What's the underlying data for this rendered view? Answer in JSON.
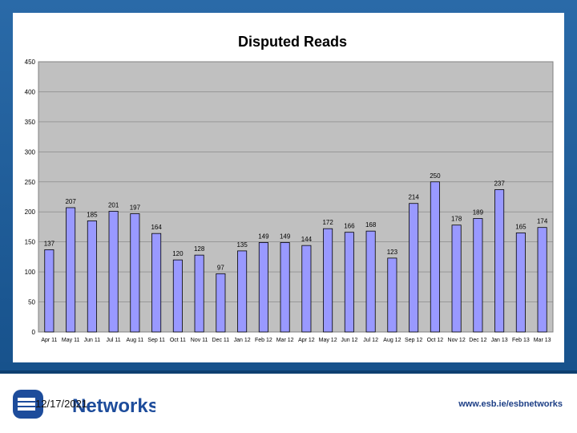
{
  "chart_data": {
    "type": "bar",
    "title": "Disputed Reads",
    "xlabel": "",
    "ylabel": "",
    "ylim": [
      0,
      450
    ],
    "yticks": [
      0,
      50,
      100,
      150,
      200,
      250,
      300,
      350,
      400,
      450
    ],
    "grid": true,
    "categories": [
      "Apr 11",
      "May 11",
      "Jun 11",
      "Jul 11",
      "Aug 11",
      "Sep 11",
      "Oct 11",
      "Nov 11",
      "Dec 11",
      "Jan 12",
      "Feb 12",
      "Mar 12",
      "Apr 12",
      "May 12",
      "Jun 12",
      "Jul 12",
      "Aug 12",
      "Sep 12",
      "Oct 12",
      "Nov 12",
      "Dec 12",
      "Jan 13",
      "Feb 13",
      "Mar 13"
    ],
    "values": [
      137,
      207,
      185,
      201,
      197,
      164,
      120,
      128,
      97,
      135,
      149,
      149,
      144,
      172,
      166,
      168,
      123,
      214,
      250,
      178,
      189,
      237,
      165,
      174
    ],
    "colors": {
      "bar_fill": "#9999ff",
      "bar_stroke": "#000000",
      "plot_bg": "#c0c0c0",
      "gridline": "#808080"
    }
  },
  "footer": {
    "date": "12/17/2021",
    "url": "www.esb.ie/esbnetworks",
    "logo_text": "Networks",
    "logo_mark": "ESB"
  },
  "colors": {
    "frame": "#1f5f9f",
    "logo_blue": "#1d4c9b"
  }
}
